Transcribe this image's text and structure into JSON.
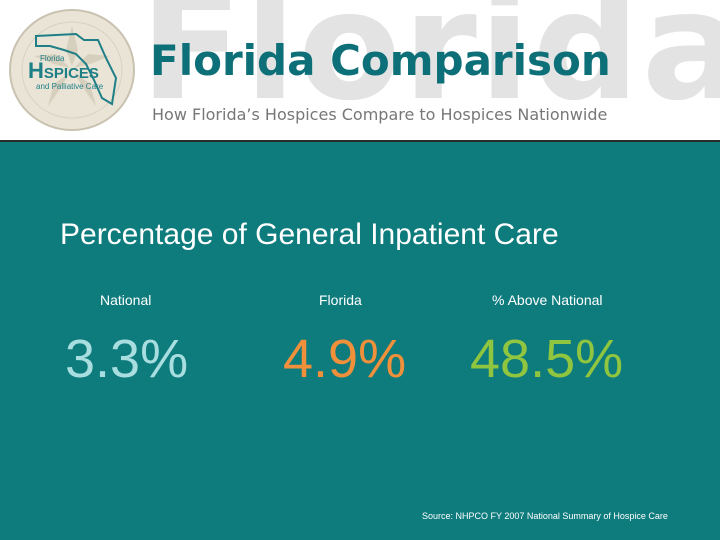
{
  "header": {
    "watermark": "Florida",
    "title": "Florida Comparison",
    "subtitle": "How Florida’s Hospices Compare to Hospices Nationwide"
  },
  "logo": {
    "line1": "Florida",
    "word_initial": "H",
    "word_rest": "SPICES",
    "tagline": "and Palliative Care"
  },
  "content": {
    "heading": "Percentage of General Inpatient Care",
    "columns": [
      {
        "label": "National",
        "value": "3.3%"
      },
      {
        "label": "Florida",
        "value": "4.9%"
      },
      {
        "label": "% Above National",
        "value": "48.5%"
      }
    ],
    "source": "Source: NHPCO FY 2007 National Summary of Hospice Care"
  },
  "colors": {
    "background": "#0e7b7d",
    "title": "#0d6f77",
    "national": "#a9dee0",
    "florida": "#f0903a",
    "above": "#8fc53f"
  }
}
